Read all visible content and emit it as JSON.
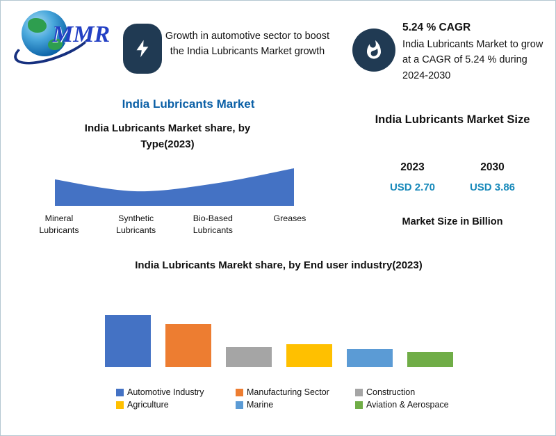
{
  "colors": {
    "badge_navy": "#203a53",
    "title_blue": "#0a5fa6",
    "value_teal": "#1789ba",
    "border": "#b3c7d1"
  },
  "logo": {
    "text": "MMR"
  },
  "icons": {
    "growth_badge": "lightning-bolt",
    "cagr_badge": "flame",
    "logo": "globe-with-swoosh"
  },
  "header": {
    "growth_note": "Growth in automotive sector to boost the India Lubricants Market growth",
    "cagr_title": "5.24 % CAGR",
    "cagr_note": "India Lubricants Market to grow at a CAGR of 5.24 % during 2024-2030"
  },
  "main_title": "India Lubricants Market",
  "market_size": {
    "title": "India Lubricants Market Size",
    "year_left": "2023",
    "year_right": "2030",
    "value_left": "USD 2.70",
    "value_right": "USD 3.86",
    "unit_note": "Market Size in Billion"
  },
  "chart_data": [
    {
      "type": "area",
      "title": "India Lubricants Market share, by Type(2023)",
      "categories": [
        "Mineral Lubricants",
        "Synthetic Lubricants",
        "Bio-Based Lubricants",
        "Greases"
      ],
      "values": [
        38,
        21,
        32,
        54
      ],
      "ylim": [
        0,
        60
      ],
      "color": "#4472c4",
      "axis_visible": false,
      "legend_position": "none"
    },
    {
      "type": "bar",
      "title": "India Lubricants Marekt share, by End user industry(2023)",
      "categories": [
        "Automotive Industry",
        "Manufacturing Sector",
        "Construction",
        "Agriculture",
        "Marine",
        "Aviation & Aerospace"
      ],
      "values": [
        75,
        62,
        29,
        33,
        26,
        22
      ],
      "ylim": [
        0,
        80
      ],
      "colors": [
        "#4472c4",
        "#ed7d31",
        "#a5a5a5",
        "#ffc000",
        "#5b9bd5",
        "#70ad47"
      ],
      "axis_visible": false,
      "legend_position": "bottom"
    }
  ]
}
